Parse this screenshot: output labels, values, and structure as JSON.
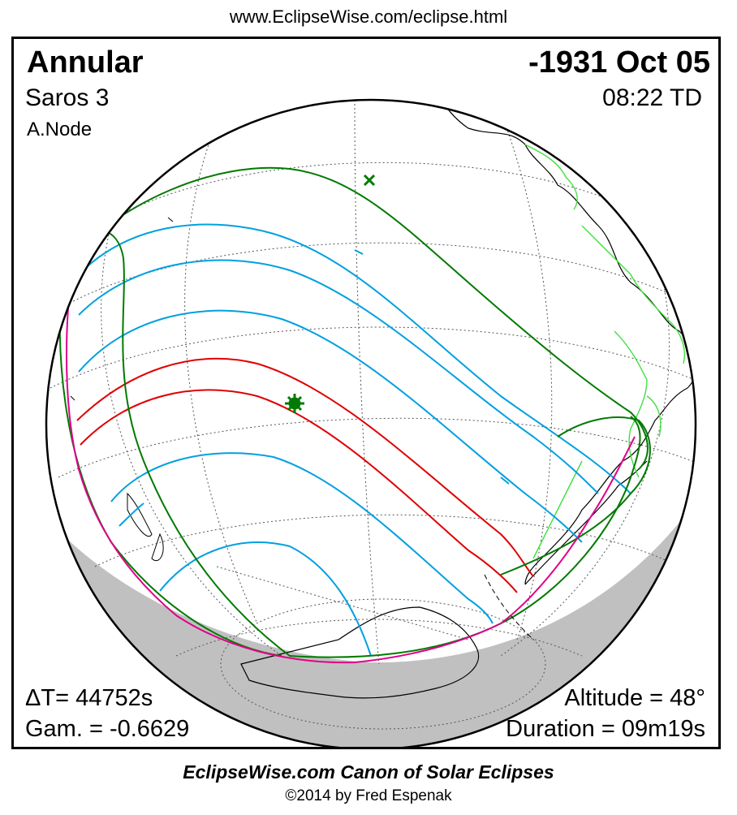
{
  "header": {
    "url": "www.EclipseWise.com/eclipse.html"
  },
  "eclipse": {
    "type": "Annular",
    "date": "-1931 Oct 05",
    "saros": "Saros   3",
    "time": "08:22 TD",
    "node": "A.Node",
    "delta_t": "ΔT=  44752s",
    "gamma": "Gam. = -0.6629",
    "altitude": "Altitude = 48°",
    "duration": "Duration = 09m19s"
  },
  "footer": {
    "title": "EclipseWise.com Canon of Solar Eclipses",
    "copyright": "©2014 by Fred Espenak"
  },
  "colors": {
    "central_path": "#e00000",
    "penumbral_limits": "#007a00",
    "magnitude_lines": "#00a0e0",
    "rise_set_curve": "#e0008a",
    "coastlines": "#000000",
    "political_borders": "#40e040",
    "night_shading": "#c0c0c0"
  }
}
